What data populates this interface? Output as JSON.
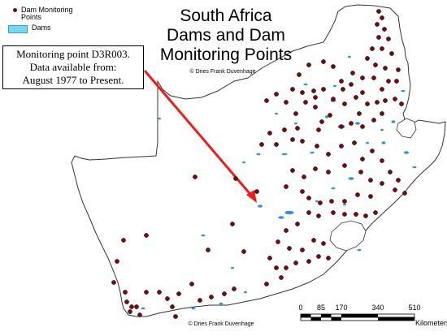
{
  "legend": {
    "dam_points_label": "Dam Monitoring Points",
    "dams_label": "Dams",
    "dot_color": "#6b0f0f",
    "dam_color": "#79d6f2"
  },
  "title": {
    "line1": "South Africa",
    "line2": "Dams and Dam",
    "line3": "Monitoring Points"
  },
  "credit": "© Dries Frank Duvenhage",
  "callout": {
    "line1": "Monitoring point D3R003.",
    "line2": "Data available from:",
    "line3": "August 1977 to Present.",
    "arrow_color": "#ee1c1c"
  },
  "scale": {
    "ticks": [
      "0",
      "85",
      "170",
      "340",
      "510"
    ],
    "unit": "Kilometers"
  }
}
